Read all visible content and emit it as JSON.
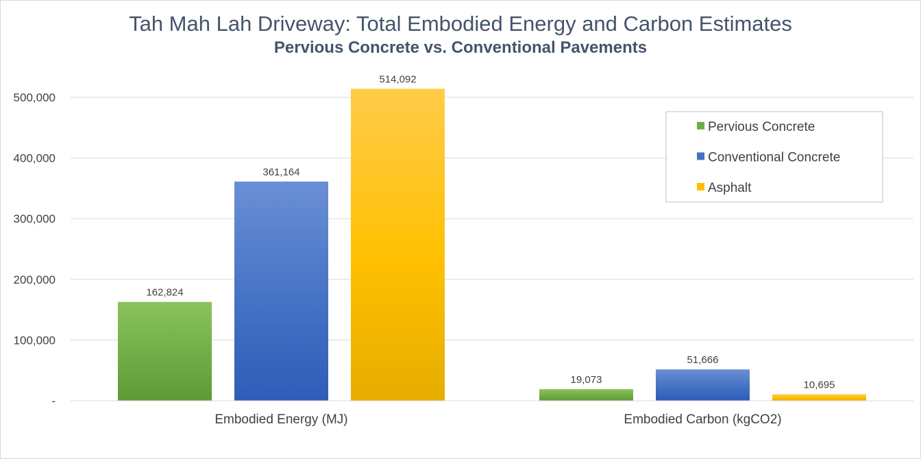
{
  "chart_data": {
    "type": "bar",
    "title": "Tah Mah Lah Driveway: Total Embodied Energy and Carbon Estimates",
    "subtitle": "Pervious Concrete vs. Conventional Pavements",
    "categories": [
      "Embodied Energy (MJ)",
      "Embodied Carbon (kgCO2)"
    ],
    "series": [
      {
        "name": "Pervious Concrete",
        "values": [
          162824,
          19073
        ],
        "labels": [
          "162,824",
          "19,073"
        ],
        "color": "#70ad47",
        "color_light": "#8ac25d",
        "color_dark": "#5e9b38"
      },
      {
        "name": "Conventional Concrete",
        "values": [
          361164,
          51666
        ],
        "labels": [
          "361,164",
          "51,666"
        ],
        "color": "#4472c4",
        "color_light": "#6a8fd6",
        "color_dark": "#2f5cb8"
      },
      {
        "name": "Asphalt",
        "values": [
          514092,
          10695
        ],
        "labels": [
          "514,092",
          "10,695"
        ],
        "color": "#ffc000",
        "color_light": "#ffcc4a",
        "color_dark": "#e6ad00"
      }
    ],
    "ylim": [
      0,
      550000
    ],
    "yticks": [
      0,
      100000,
      200000,
      300000,
      400000,
      500000
    ],
    "ytick_labels": [
      "-",
      "100,000",
      "200,000",
      "300,000",
      "400,000",
      "500,000"
    ],
    "grid": true,
    "legend_position": "right"
  }
}
